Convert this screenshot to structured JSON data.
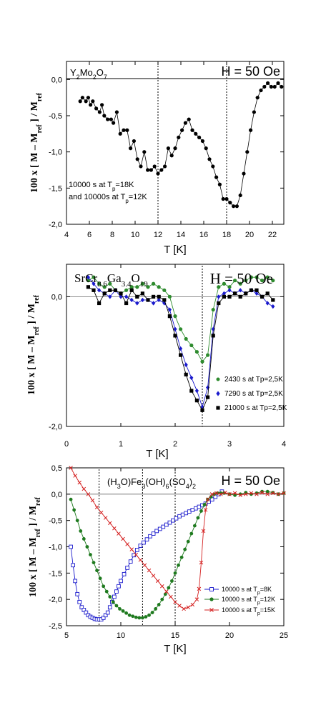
{
  "chart_data": [
    {
      "type": "line",
      "compound": "Y₂Mo₂O₇",
      "field_label": "H = 50 Oe",
      "xlabel": "T [K]",
      "ylabel": "100 x [ M – M_ref ] / M_ref",
      "xlim": [
        4,
        23
      ],
      "ylim": [
        -2.0,
        0.25
      ],
      "xticks": [
        "4",
        "6",
        "8",
        "10",
        "12",
        "14",
        "16",
        "18",
        "20",
        "22"
      ],
      "yticks": [
        "0,0",
        "-0,5",
        "-1,0",
        "-1,5",
        "-2,0"
      ],
      "vlines": [
        12,
        18
      ],
      "annotation": [
        "10000 s at Tp=18K",
        "and 10000s at Tp=12K"
      ],
      "series": [
        {
          "color": "#000000",
          "marker": "circle-filled",
          "x": [
            5.2,
            5.4,
            5.7,
            5.9,
            6.1,
            6.3,
            6.6,
            6.9,
            7.1,
            7.3,
            7.6,
            7.9,
            8.1,
            8.4,
            8.7,
            9.0,
            9.3,
            9.6,
            9.9,
            10.2,
            10.5,
            10.8,
            11.1,
            11.4,
            11.7,
            12.0,
            12.3,
            12.6,
            12.9,
            13.2,
            13.5,
            13.8,
            14.1,
            14.4,
            14.7,
            15.0,
            15.3,
            15.6,
            15.9,
            16.2,
            16.5,
            16.8,
            17.1,
            17.4,
            17.7,
            18.0,
            18.3,
            18.6,
            18.9,
            19.2,
            19.5,
            19.8,
            20.1,
            20.4,
            20.7,
            21.0,
            21.3,
            21.6,
            21.9,
            22.2,
            22.5,
            22.8
          ],
          "y": [
            -0.3,
            -0.25,
            -0.3,
            -0.25,
            -0.35,
            -0.3,
            -0.4,
            -0.45,
            -0.35,
            -0.5,
            -0.55,
            -0.55,
            -0.6,
            -0.45,
            -0.75,
            -0.7,
            -0.7,
            -0.95,
            -0.85,
            -1.1,
            -1.2,
            -1.0,
            -1.25,
            -1.25,
            -1.2,
            -1.3,
            -1.25,
            -1.2,
            -0.95,
            -1.05,
            -0.95,
            -0.8,
            -0.7,
            -0.6,
            -0.55,
            -0.7,
            -0.75,
            -0.8,
            -0.85,
            -0.95,
            -1.1,
            -1.2,
            -1.35,
            -1.45,
            -1.65,
            -1.65,
            -1.7,
            -1.75,
            -1.75,
            -1.6,
            -1.3,
            -1.0,
            -0.7,
            -0.45,
            -0.25,
            -0.15,
            -0.1,
            -0.05,
            -0.1,
            -0.1,
            -0.05,
            -0.1
          ]
        }
      ]
    },
    {
      "type": "line",
      "compound": "SrCr8.6Ga3.4O19",
      "field_label": "H = 50 Oe",
      "xlabel": "T [K]",
      "ylabel": "100 x [ M – M_ref ] / M_ref",
      "xlim": [
        0,
        4
      ],
      "ylim": [
        -2.0,
        0.5
      ],
      "xticks": [
        "0",
        "1",
        "2",
        "3",
        "4"
      ],
      "yticks": [
        "0,0",
        "-2,0"
      ],
      "vlines": [
        2.5
      ],
      "series": [
        {
          "name": "2430 s at Tp=2,5K",
          "color": "#2e8b2e",
          "marker": "circle-filled",
          "x": [
            0.4,
            0.5,
            0.6,
            0.7,
            0.8,
            0.9,
            1.0,
            1.1,
            1.2,
            1.3,
            1.4,
            1.5,
            1.6,
            1.7,
            1.8,
            1.9,
            2.0,
            2.1,
            2.2,
            2.3,
            2.4,
            2.5,
            2.6,
            2.7,
            2.8,
            2.9,
            3.0,
            3.1,
            3.2,
            3.3,
            3.4,
            3.5,
            3.6,
            3.7,
            3.8
          ],
          "y": [
            0.25,
            0.3,
            0.2,
            0.15,
            0.2,
            0.1,
            0.05,
            0.1,
            0.15,
            0.15,
            0.2,
            0.15,
            0.2,
            0.15,
            0.1,
            0.0,
            -0.3,
            -0.5,
            -0.65,
            -0.75,
            -0.85,
            -1.0,
            -0.9,
            -0.2,
            0.15,
            0.2,
            0.15,
            0.25,
            0.2,
            0.25,
            0.3,
            0.3,
            0.25,
            0.3,
            0.25
          ]
        },
        {
          "name": "7290 s at Tp=2,5K",
          "color": "#1a1acc",
          "marker": "diamond-filled",
          "x": [
            0.4,
            0.5,
            0.6,
            0.7,
            0.8,
            0.9,
            1.0,
            1.1,
            1.2,
            1.3,
            1.4,
            1.5,
            1.6,
            1.7,
            1.8,
            1.9,
            2.0,
            2.1,
            2.2,
            2.3,
            2.4,
            2.5,
            2.6,
            2.7,
            2.8,
            2.9,
            3.0,
            3.1,
            3.2,
            3.3,
            3.4,
            3.5,
            3.6,
            3.7,
            3.8
          ],
          "y": [
            0.3,
            0.2,
            0.1,
            0.05,
            0.0,
            0.1,
            0.0,
            0.0,
            -0.05,
            -0.1,
            -0.05,
            -0.05,
            -0.1,
            -0.05,
            -0.1,
            -0.2,
            -0.5,
            -0.8,
            -1.05,
            -1.25,
            -1.45,
            -1.7,
            -1.4,
            -0.5,
            0.0,
            0.05,
            0.1,
            0.05,
            0.1,
            0.05,
            0.1,
            0.05,
            0.0,
            -0.1,
            -0.15
          ]
        },
        {
          "name": "21000 s at Tp=2,5K",
          "color": "#000000",
          "marker": "square-filled",
          "x": [
            0.4,
            0.5,
            0.6,
            0.7,
            0.8,
            0.9,
            1.0,
            1.1,
            1.2,
            1.3,
            1.4,
            1.5,
            1.6,
            1.7,
            1.8,
            1.9,
            2.0,
            2.1,
            2.2,
            2.3,
            2.4,
            2.5,
            2.6,
            2.7,
            2.8,
            2.9,
            3.0,
            3.1,
            3.2,
            3.3,
            3.4,
            3.5,
            3.6,
            3.7,
            3.8
          ],
          "y": [
            0.15,
            0.1,
            -0.1,
            0.05,
            0.1,
            0.1,
            0.05,
            -0.1,
            0.1,
            0.0,
            0.05,
            -0.05,
            0.0,
            0.0,
            -0.05,
            -0.3,
            -0.6,
            -0.9,
            -1.2,
            -1.45,
            -1.6,
            -1.75,
            -1.55,
            -0.6,
            -0.1,
            0.0,
            0.0,
            0.05,
            0.0,
            0.05,
            0.1,
            0.1,
            0.0,
            0.05,
            -0.05
          ]
        }
      ]
    },
    {
      "type": "line",
      "compound": "(H3O)Fe3(OH)6(SO4)2",
      "field_label": "H = 50 Oe",
      "xlabel": "T [K]",
      "ylabel": "100 x [ M – M_ref ] / M_ref",
      "xlim": [
        5,
        25
      ],
      "ylim": [
        -2.5,
        0.5
      ],
      "xticks": [
        "5",
        "10",
        "15",
        "20",
        "25"
      ],
      "yticks": [
        "0,5",
        "0,0",
        "-0,5",
        "-1,0",
        "-1,5",
        "-2,0",
        "-2,5"
      ],
      "vlines": [
        8,
        12,
        15
      ],
      "series": [
        {
          "name": "10000 s at Tp=8K",
          "color": "#1a1acc",
          "marker": "square-open",
          "x": [
            5.4,
            5.6,
            5.8,
            6.0,
            6.2,
            6.4,
            6.6,
            6.8,
            7.0,
            7.2,
            7.4,
            7.6,
            7.8,
            8.0,
            8.2,
            8.4,
            8.6,
            8.8,
            9.0,
            9.2,
            9.4,
            9.6,
            9.8,
            10.0,
            10.3,
            10.6,
            10.9,
            11.2,
            11.5,
            11.8,
            12.1,
            12.4,
            12.7,
            13.0,
            13.3,
            13.6,
            13.9,
            14.2,
            14.5,
            14.8,
            15.1,
            15.4,
            15.7,
            16.0,
            16.3,
            16.6,
            16.9,
            17.2,
            17.5,
            17.8,
            18.1,
            18.4,
            18.7,
            19.0,
            19.3
          ],
          "y": [
            -1.0,
            -1.35,
            -1.65,
            -1.9,
            -2.05,
            -2.15,
            -2.2,
            -2.25,
            -2.3,
            -2.33,
            -2.35,
            -2.37,
            -2.38,
            -2.38,
            -2.38,
            -2.35,
            -2.3,
            -2.25,
            -2.15,
            -2.05,
            -1.95,
            -1.85,
            -1.75,
            -1.65,
            -1.52,
            -1.4,
            -1.28,
            -1.16,
            -1.06,
            -0.98,
            -0.92,
            -0.86,
            -0.8,
            -0.75,
            -0.7,
            -0.66,
            -0.62,
            -0.58,
            -0.54,
            -0.5,
            -0.46,
            -0.42,
            -0.39,
            -0.36,
            -0.33,
            -0.3,
            -0.27,
            -0.24,
            -0.21,
            -0.18,
            -0.14,
            -0.1,
            -0.05,
            0.0,
            0.05
          ]
        },
        {
          "name": "10000 s at Tp=12K",
          "color": "#1f7a1f",
          "marker": "circle-filled",
          "x": [
            5.4,
            5.7,
            6.0,
            6.3,
            6.6,
            6.9,
            7.2,
            7.5,
            7.8,
            8.1,
            8.4,
            8.7,
            9.0,
            9.3,
            9.6,
            9.9,
            10.2,
            10.5,
            10.8,
            11.1,
            11.4,
            11.7,
            12.0,
            12.3,
            12.6,
            12.9,
            13.2,
            13.5,
            13.8,
            14.1,
            14.4,
            14.7,
            15.0,
            15.3,
            15.6,
            15.9,
            16.2,
            16.5,
            16.8,
            17.1,
            17.4,
            17.7,
            18.0,
            18.3,
            18.6,
            18.9,
            19.2,
            19.5,
            20.0,
            20.5,
            21.0,
            21.5,
            22.0,
            22.5,
            23.0,
            23.5,
            24.0,
            24.5,
            25.0
          ],
          "y": [
            -0.1,
            -0.3,
            -0.5,
            -0.7,
            -0.85,
            -1.0,
            -1.15,
            -1.3,
            -1.45,
            -1.6,
            -1.75,
            -1.85,
            -1.95,
            -2.05,
            -2.12,
            -2.18,
            -2.22,
            -2.26,
            -2.3,
            -2.32,
            -2.34,
            -2.35,
            -2.35,
            -2.33,
            -2.3,
            -2.25,
            -2.18,
            -2.1,
            -2.0,
            -1.9,
            -1.78,
            -1.65,
            -1.5,
            -1.35,
            -1.2,
            -1.05,
            -0.9,
            -0.75,
            -0.6,
            -0.45,
            -0.32,
            -0.2,
            -0.1,
            -0.05,
            0.0,
            0.02,
            0.02,
            0.02,
            0.0,
            -0.02,
            0.0,
            0.03,
            0.0,
            0.02,
            0.05,
            0.05,
            0.03,
            0.0,
            0.02
          ]
        },
        {
          "name": "10000 s at Tp=15K",
          "color": "#d42020",
          "marker": "x",
          "x": [
            5.4,
            5.8,
            6.2,
            6.6,
            7.0,
            7.4,
            7.8,
            8.2,
            8.6,
            9.0,
            9.4,
            9.8,
            10.2,
            10.6,
            11.0,
            11.4,
            11.8,
            12.2,
            12.6,
            13.0,
            13.4,
            13.8,
            14.2,
            14.6,
            15.0,
            15.4,
            15.8,
            16.2,
            16.6,
            17.0,
            17.2,
            17.4,
            17.6,
            17.8,
            18.0,
            18.4,
            18.8,
            19.2,
            19.6,
            20.0,
            20.5,
            21.0,
            21.5,
            22.0,
            22.5,
            23.0,
            23.5,
            24.0,
            24.5,
            25.0
          ],
          "y": [
            0.5,
            0.35,
            0.22,
            0.1,
            0.0,
            -0.12,
            -0.25,
            -0.35,
            -0.45,
            -0.55,
            -0.65,
            -0.75,
            -0.85,
            -0.95,
            -1.05,
            -1.15,
            -1.25,
            -1.35,
            -1.45,
            -1.55,
            -1.65,
            -1.75,
            -1.85,
            -1.95,
            -2.05,
            -2.12,
            -2.18,
            -2.15,
            -2.1,
            -2.0,
            -1.8,
            -1.3,
            -0.7,
            -0.3,
            -0.1,
            0.0,
            0.02,
            0.0,
            0.03,
            0.0,
            0.02,
            -0.02,
            0.0,
            0.02,
            0.0,
            0.03,
            0.0,
            0.02,
            0.0,
            0.02
          ]
        }
      ]
    }
  ]
}
